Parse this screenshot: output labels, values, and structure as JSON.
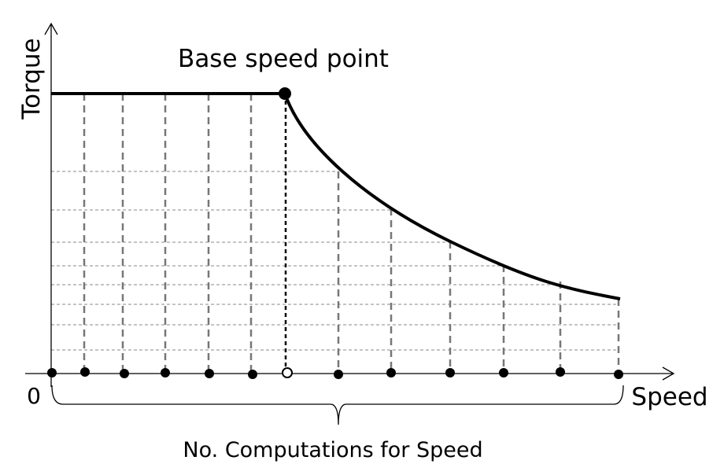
{
  "title": "Base speed point",
  "y_axis_label": "Torque",
  "x_axis_label": "Speed",
  "origin_label": "0",
  "brace_label": "No. Computations for Speed"
}
